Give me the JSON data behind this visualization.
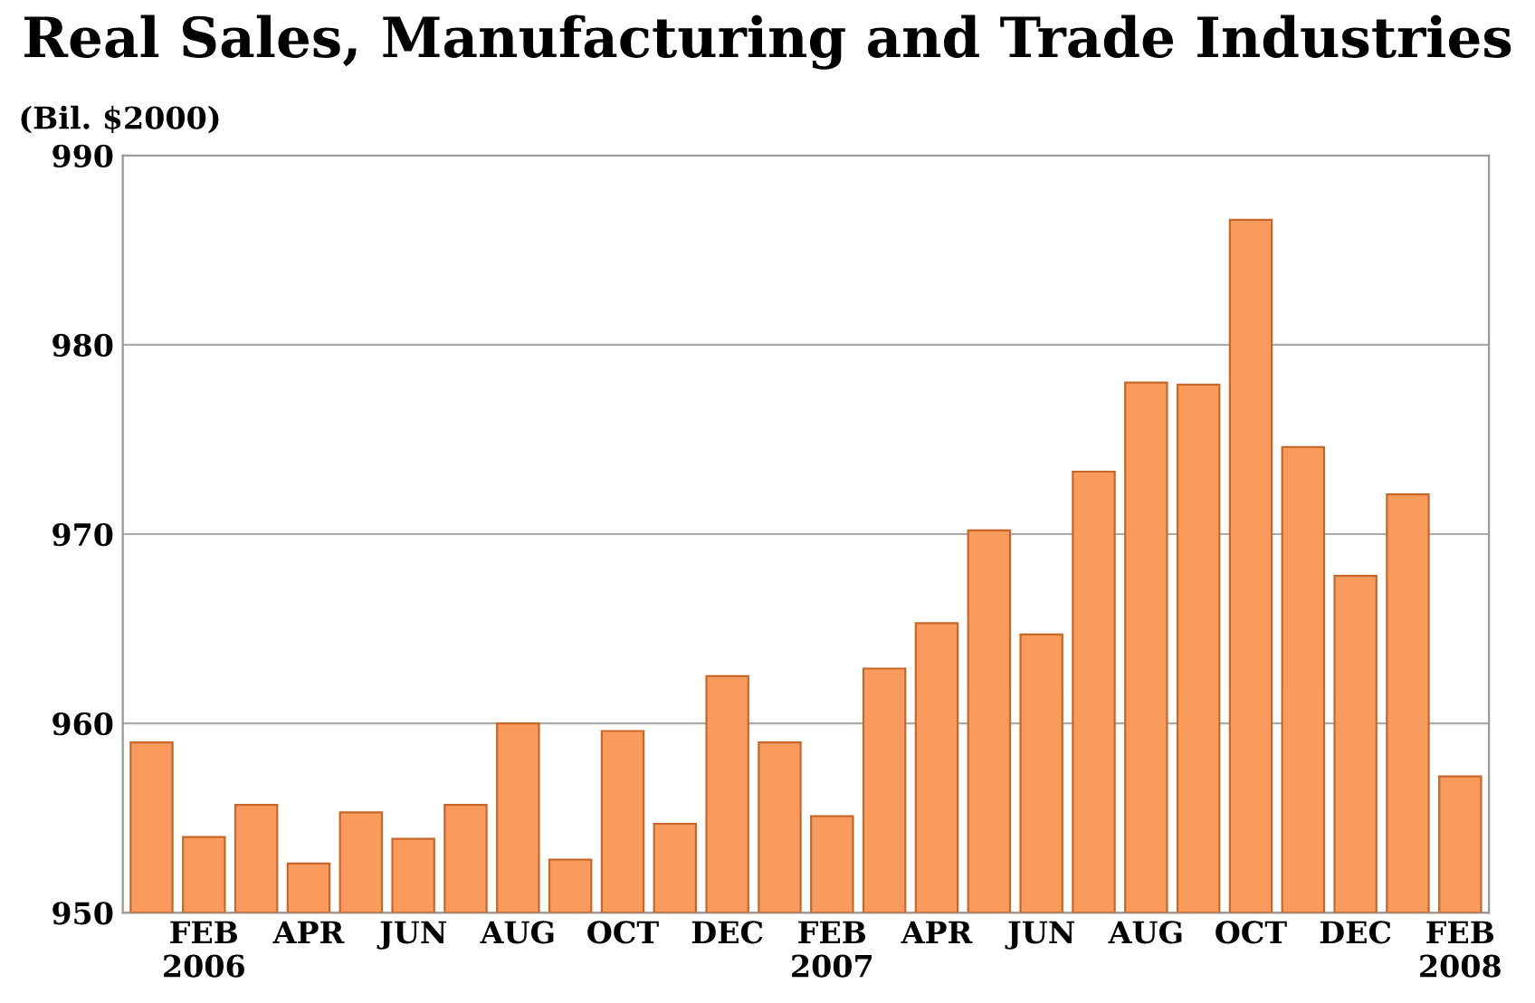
{
  "chart_data": {
    "type": "bar",
    "title": "Real Sales, Manufacturing and Trade Industries",
    "ylabel": "(Bil. $2000)",
    "categories": [
      null,
      "FEB\n2006",
      null,
      "APR",
      null,
      "JUN",
      null,
      "AUG",
      null,
      "OCT",
      null,
      "DEC",
      null,
      "FEB\n2007",
      null,
      "APR",
      null,
      "JUN",
      null,
      "AUG",
      null,
      "OCT",
      null,
      "DEC",
      null,
      "FEB\n2008"
    ],
    "values": [
      959.0,
      954.0,
      955.7,
      952.6,
      955.3,
      953.9,
      955.7,
      960.0,
      952.8,
      959.6,
      954.7,
      962.5,
      959.0,
      955.1,
      962.9,
      965.3,
      970.2,
      964.7,
      973.3,
      978.0,
      977.9,
      986.6,
      974.6,
      967.8,
      972.1,
      957.2
    ],
    "color": "#f89b5c",
    "ylim": [
      950,
      990
    ],
    "yticks": [
      950,
      960,
      970,
      980,
      990
    ],
    "grid": "y"
  }
}
